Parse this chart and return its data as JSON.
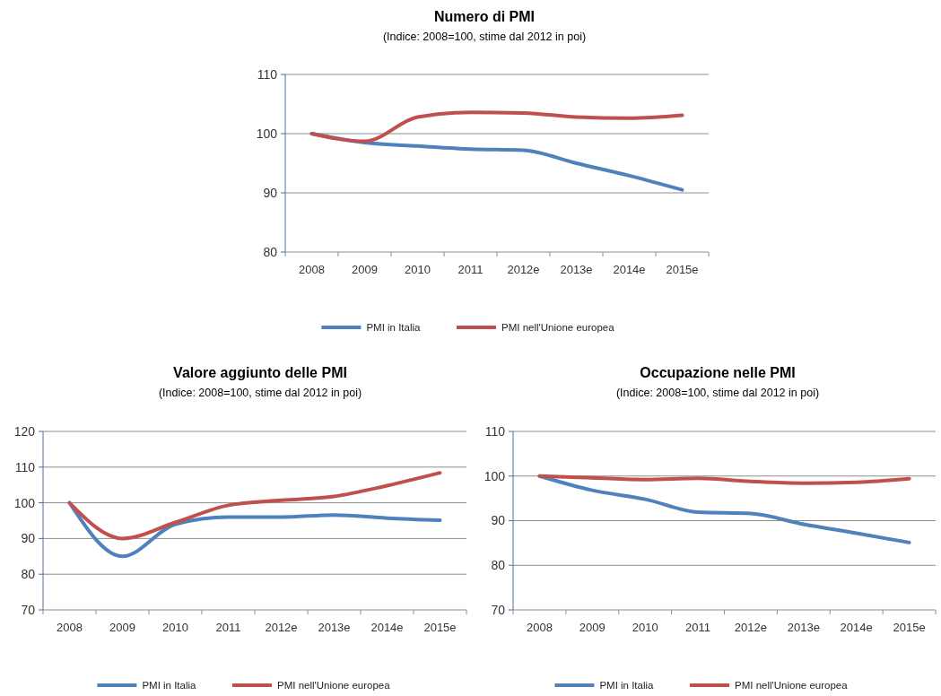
{
  "chart_data": [
    {
      "type": "line",
      "title": "Numero di PMI",
      "subtitle": "(Indice: 2008=100, stime dal 2012 in poi)",
      "categories": [
        "2008",
        "2009",
        "2010",
        "2011",
        "2012e",
        "2013e",
        "2014e",
        "2015e"
      ],
      "series": [
        {
          "name": "PMI in Italia",
          "color": "#4f81bd",
          "values": [
            100,
            98.5,
            97.9,
            97.4,
            97.2,
            95,
            92.9,
            90.5
          ]
        },
        {
          "name": "PMI nell'Unione europea",
          "color": "#c0504d",
          "values": [
            100,
            98.7,
            102.8,
            103.6,
            103.5,
            102.8,
            102.6,
            103.1
          ]
        }
      ],
      "ylim": [
        80,
        110
      ],
      "yticks": [
        80,
        90,
        100,
        110
      ],
      "grid": "y",
      "legend": "bottom"
    },
    {
      "type": "line",
      "title": "Valore aggiunto delle PMI",
      "subtitle": "(Indice: 2008=100, stime dal 2012 in poi)",
      "categories": [
        "2008",
        "2009",
        "2010",
        "2011",
        "2012e",
        "2013e",
        "2014e",
        "2015e"
      ],
      "series": [
        {
          "name": "PMI in Italia",
          "color": "#4f81bd",
          "values": [
            100,
            85,
            94,
            96,
            96,
            96.6,
            95.7,
            95.1
          ]
        },
        {
          "name": "PMI nell'Unione europea",
          "color": "#c0504d",
          "values": [
            100,
            90,
            94.5,
            99.3,
            100.7,
            101.8,
            104.8,
            108.4
          ]
        }
      ],
      "ylim": [
        70,
        120
      ],
      "yticks": [
        70,
        80,
        90,
        100,
        110,
        120
      ],
      "grid": "y",
      "legend": "bottom"
    },
    {
      "type": "line",
      "title": "Occupazione nelle PMI",
      "subtitle": "(Indice: 2008=100, stime dal 2012 in poi)",
      "categories": [
        "2008",
        "2009",
        "2010",
        "2011",
        "2012e",
        "2013e",
        "2014e",
        "2015e"
      ],
      "series": [
        {
          "name": "PMI in Italia",
          "color": "#4f81bd",
          "values": [
            100,
            96.8,
            94.8,
            91.9,
            91.6,
            89.2,
            87.2,
            85.1
          ]
        },
        {
          "name": "PMI nell'Unione europea",
          "color": "#c0504d",
          "values": [
            100,
            99.6,
            99.2,
            99.5,
            98.8,
            98.4,
            98.6,
            99.4
          ]
        }
      ],
      "ylim": [
        70,
        110
      ],
      "yticks": [
        70,
        80,
        90,
        100,
        110
      ],
      "grid": "y",
      "legend": "bottom"
    }
  ]
}
